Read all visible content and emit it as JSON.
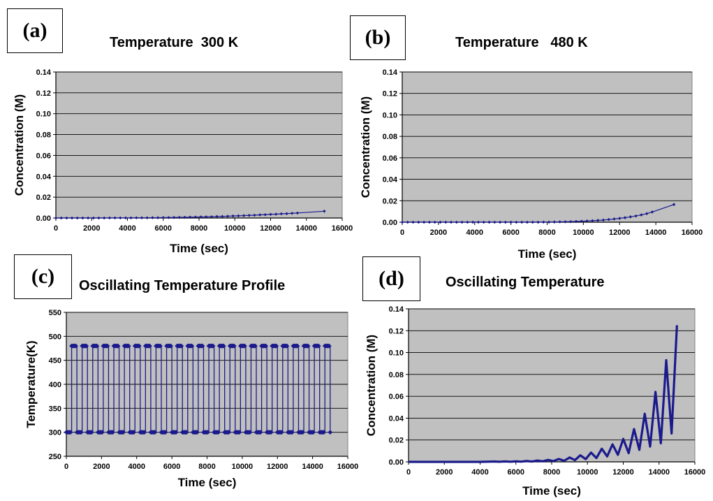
{
  "panels": [
    {
      "label": "(a)",
      "title": "Temperature  300 K",
      "chart_data": {
        "type": "line",
        "title": "Temperature  300 K",
        "xlabel": "Time (sec)",
        "ylabel": "Concentration (M)",
        "xlim": [
          0,
          16000
        ],
        "ylim": [
          0,
          0.14
        ],
        "xticks": [
          0,
          2000,
          4000,
          6000,
          8000,
          10000,
          12000,
          14000,
          16000
        ],
        "xtick_labels": [
          "0",
          "2000",
          "4000",
          "6000",
          "8000",
          "10000",
          "12000",
          "14000",
          "16000"
        ],
        "yticks": [
          0,
          0.02,
          0.04,
          0.06,
          0.08,
          0.1,
          0.12,
          0.14
        ],
        "ytick_labels": [
          "0.00",
          "0.02",
          "0.04",
          "0.06",
          "0.08",
          "0.10",
          "0.12",
          "0.14"
        ],
        "grid": true,
        "series": [
          {
            "markers": true,
            "x": [
              0,
              300,
              600,
              900,
              1200,
              1500,
              1800,
              2100,
              2400,
              2700,
              3000,
              3300,
              3600,
              3900,
              4200,
              4500,
              4800,
              5100,
              5400,
              5700,
              6000,
              6300,
              6600,
              6900,
              7200,
              7500,
              7800,
              8100,
              8400,
              8700,
              9000,
              9300,
              9600,
              9900,
              10200,
              10500,
              10800,
              11100,
              11400,
              11700,
              12000,
              12300,
              12600,
              12900,
              13200,
              13500,
              15000
            ],
            "y": [
              0,
              0,
              0,
              0,
              0,
              0,
              0,
              0,
              0,
              0,
              0.0001,
              0.0001,
              0.0001,
              0.0001,
              0.0001,
              0.0002,
              0.0002,
              0.0002,
              0.0003,
              0.0003,
              0.0004,
              0.0004,
              0.0005,
              0.0006,
              0.0007,
              0.0008,
              0.0009,
              0.001,
              0.0011,
              0.0012,
              0.0014,
              0.0015,
              0.0017,
              0.0019,
              0.0021,
              0.0023,
              0.0025,
              0.0027,
              0.003,
              0.0032,
              0.0035,
              0.0037,
              0.004,
              0.0042,
              0.0045,
              0.0048,
              0.0065
            ]
          }
        ]
      }
    },
    {
      "label": "(b)",
      "title": "Temperature   480 K",
      "chart_data": {
        "type": "line",
        "title": "Temperature   480 K",
        "xlabel": "Time (sec)",
        "ylabel": "Concentration (M)",
        "xlim": [
          0,
          16000
        ],
        "ylim": [
          0,
          0.14
        ],
        "xticks": [
          0,
          2000,
          4000,
          6000,
          8000,
          10000,
          12000,
          14000,
          16000
        ],
        "xtick_labels": [
          "0",
          "2000",
          "4000",
          "6000",
          "8000",
          "10000",
          "12000",
          "14000",
          "16000"
        ],
        "yticks": [
          0,
          0.02,
          0.04,
          0.06,
          0.08,
          0.1,
          0.12,
          0.14
        ],
        "ytick_labels": [
          "0.00",
          "0.02",
          "0.04",
          "0.06",
          "0.08",
          "0.10",
          "0.12",
          "0.14"
        ],
        "grid": true,
        "series": [
          {
            "markers": true,
            "x": [
              0,
              300,
              600,
              900,
              1200,
              1500,
              1800,
              2100,
              2400,
              2700,
              3000,
              3300,
              3600,
              3900,
              4200,
              4500,
              4800,
              5100,
              5400,
              5700,
              6000,
              6300,
              6600,
              6900,
              7200,
              7500,
              7800,
              8100,
              8400,
              8700,
              9000,
              9300,
              9600,
              9900,
              10200,
              10500,
              10800,
              11100,
              11400,
              11700,
              12000,
              12300,
              12600,
              12900,
              13200,
              13500,
              13800,
              15000
            ],
            "y": [
              0,
              0,
              0,
              0,
              0,
              0,
              0,
              0,
              0,
              0,
              0,
              0,
              0,
              0,
              0,
              0,
              0,
              0,
              0,
              0,
              0,
              0,
              0,
              0,
              0,
              0,
              0.0001,
              0.0001,
              0.0002,
              0.0003,
              0.0004,
              0.0005,
              0.0007,
              0.0009,
              0.0011,
              0.0014,
              0.0017,
              0.002,
              0.0025,
              0.003,
              0.0036,
              0.0042,
              0.005,
              0.0058,
              0.0068,
              0.008,
              0.0095,
              0.0165
            ]
          }
        ]
      }
    },
    {
      "label": "(c)",
      "title": "Oscillating Temperature Profile",
      "chart_data": {
        "type": "line",
        "title": "Oscillating Temperature Profile",
        "xlabel": "Time (sec)",
        "ylabel": "Temperature(K)",
        "xlim": [
          0,
          16000
        ],
        "ylim": [
          250,
          550
        ],
        "xticks": [
          0,
          2000,
          4000,
          6000,
          8000,
          10000,
          12000,
          14000,
          16000
        ],
        "xtick_labels": [
          "0",
          "2000",
          "4000",
          "6000",
          "8000",
          "10000",
          "12000",
          "14000",
          "16000"
        ],
        "yticks": [
          250,
          300,
          350,
          400,
          450,
          500,
          550
        ],
        "ytick_labels": [
          "250",
          "300",
          "350",
          "400",
          "450",
          "500",
          "550"
        ],
        "grid": true,
        "square_wave": {
          "low": 300,
          "high": 480,
          "start": 0,
          "end": 15000,
          "half_period": 300
        }
      }
    },
    {
      "label": "(d)",
      "title": "Oscillating Temperature",
      "chart_data": {
        "type": "line",
        "title": "Oscillating Temperature",
        "xlabel": "Time (sec)",
        "ylabel": "Concentration (M)",
        "xlim": [
          0,
          16000
        ],
        "ylim": [
          0,
          0.14
        ],
        "xticks": [
          0,
          2000,
          4000,
          6000,
          8000,
          10000,
          12000,
          14000,
          16000
        ],
        "xtick_labels": [
          "0",
          "2000",
          "4000",
          "6000",
          "8000",
          "10000",
          "12000",
          "14000",
          "16000"
        ],
        "yticks": [
          0,
          0.02,
          0.04,
          0.06,
          0.08,
          0.1,
          0.12,
          0.14
        ],
        "ytick_labels": [
          "0.00",
          "0.02",
          "0.04",
          "0.06",
          "0.08",
          "0.10",
          "0.12",
          "0.14"
        ],
        "grid": true,
        "series": [
          {
            "markers": false,
            "x": [
              0,
              4000,
              4800,
              5100,
              5400,
              5700,
              6000,
              6300,
              6600,
              6900,
              7200,
              7500,
              7800,
              8100,
              8400,
              8700,
              9000,
              9300,
              9600,
              9900,
              10200,
              10500,
              10800,
              11100,
              11400,
              11700,
              12000,
              12300,
              12600,
              12900,
              13200,
              13500,
              13800,
              14100,
              14400,
              14700,
              15000
            ],
            "y": [
              0,
              0,
              0.0003,
              0.0001,
              0.0004,
              0.0001,
              0.0005,
              0.0002,
              0.0008,
              0.0003,
              0.0012,
              0.0005,
              0.0018,
              0.0007,
              0.0026,
              0.001,
              0.004,
              0.0016,
              0.006,
              0.0025,
              0.0085,
              0.0035,
              0.012,
              0.005,
              0.016,
              0.0065,
              0.021,
              0.008,
              0.03,
              0.011,
              0.044,
              0.014,
              0.064,
              0.017,
              0.093,
              0.026,
              0.125
            ]
          }
        ]
      }
    }
  ]
}
